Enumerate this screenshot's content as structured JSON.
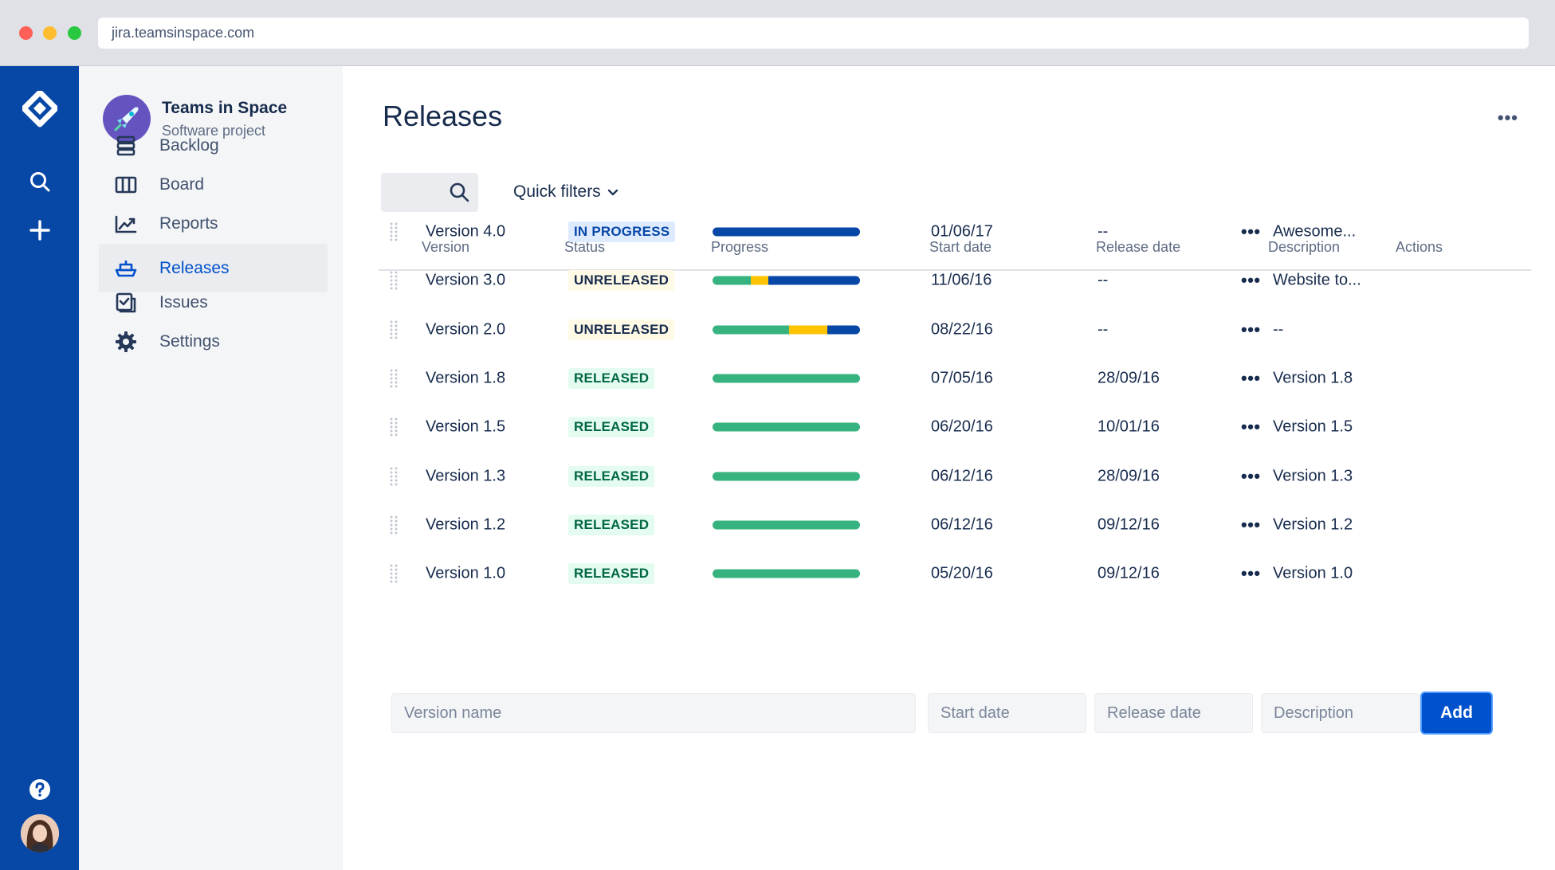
{
  "browser": {
    "url": "jira.teamsinspace.com"
  },
  "project": {
    "name": "Teams in Space",
    "type": "Software project"
  },
  "sidebar": {
    "items": [
      {
        "label": "Backlog",
        "icon": "backlog-icon"
      },
      {
        "label": "Board",
        "icon": "board-icon"
      },
      {
        "label": "Reports",
        "icon": "reports-icon"
      },
      {
        "label": "Releases",
        "icon": "releases-icon",
        "active": true
      },
      {
        "label": "Issues",
        "icon": "issues-icon"
      },
      {
        "label": "Settings",
        "icon": "gear-icon"
      }
    ]
  },
  "page": {
    "title": "Releases",
    "more": "•••"
  },
  "filters": {
    "quick_filters": "Quick filters"
  },
  "table": {
    "headers": {
      "version": "Version",
      "status": "Status",
      "progress": "Progress",
      "start": "Start date",
      "release": "Release date",
      "description": "Description",
      "actions": "Actions"
    },
    "rows": [
      {
        "version": "Version 4.0",
        "status": "IN PROGRESS",
        "status_kind": "inprogress",
        "progress": {
          "done": 0,
          "in_progress": 0,
          "todo": 1
        },
        "start": "01/06/17",
        "release": "--",
        "description": "Awesome...",
        "actions": "•••"
      },
      {
        "version": "Version 3.0",
        "status": "UNRELEASED",
        "status_kind": "unreleased",
        "progress": {
          "done": 0.26,
          "in_progress": 0.12,
          "todo": 0.62
        },
        "start": "11/06/16",
        "release": "--",
        "description": "Website to...",
        "actions": "•••"
      },
      {
        "version": "Version 2.0",
        "status": "UNRELEASED",
        "status_kind": "unreleased",
        "progress": {
          "done": 0.52,
          "in_progress": 0.26,
          "todo": 0.22
        },
        "start": "08/22/16",
        "release": "--",
        "description": "--",
        "actions": "•••"
      },
      {
        "version": "Version 1.8",
        "status": "RELEASED",
        "status_kind": "released",
        "progress": {
          "done": 1,
          "in_progress": 0,
          "todo": 0
        },
        "start": "07/05/16",
        "release": "28/09/16",
        "description": "Version 1.8",
        "actions": "•••"
      },
      {
        "version": "Version 1.5",
        "status": "RELEASED",
        "status_kind": "released",
        "progress": {
          "done": 1,
          "in_progress": 0,
          "todo": 0
        },
        "start": "06/20/16",
        "release": "10/01/16",
        "description": "Version 1.5",
        "actions": "•••"
      },
      {
        "version": "Version 1.3",
        "status": "RELEASED",
        "status_kind": "released",
        "progress": {
          "done": 1,
          "in_progress": 0,
          "todo": 0
        },
        "start": "06/12/16",
        "release": "28/09/16",
        "description": "Version 1.3",
        "actions": "•••"
      },
      {
        "version": "Version 1.2",
        "status": "RELEASED",
        "status_kind": "released",
        "progress": {
          "done": 1,
          "in_progress": 0,
          "todo": 0
        },
        "start": "06/12/16",
        "release": "09/12/16",
        "description": "Version 1.2",
        "actions": "•••"
      },
      {
        "version": "Version 1.0",
        "status": "RELEASED",
        "status_kind": "released",
        "progress": {
          "done": 1,
          "in_progress": 0,
          "todo": 0
        },
        "start": "05/20/16",
        "release": "09/12/16",
        "description": "Version 1.0",
        "actions": "•••"
      }
    ]
  },
  "add_form": {
    "version_placeholder": "Version name",
    "start_placeholder": "Start date",
    "release_placeholder": "Release date",
    "description_placeholder": "Description",
    "add_label": "Add"
  },
  "colors": {
    "global_nav": "#0747a6",
    "primary": "#0052cc",
    "done": "#36b37e",
    "in_progress": "#ffc400",
    "todo": "#0747a6"
  }
}
